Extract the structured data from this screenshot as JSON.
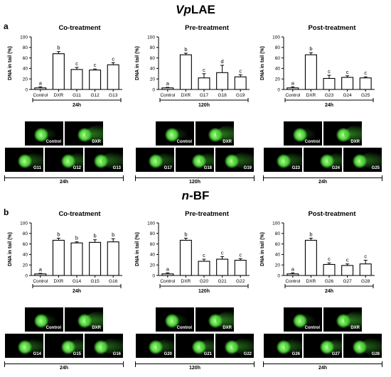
{
  "sections": [
    {
      "letter": "a",
      "title_pre": "Vp",
      "title_post": "LAE",
      "charts": [
        {
          "title": "Co-treatment",
          "time": "24h"
        },
        {
          "title": "Pre-treatment",
          "time": "120h"
        },
        {
          "title": "Post-treatment",
          "time": "24h"
        }
      ],
      "comets": [
        {
          "top": [
            "Control",
            "DXR"
          ],
          "bottom": [
            "G11",
            "G12",
            "G13"
          ],
          "time": "24h"
        },
        {
          "top": [
            "Control",
            "DXR"
          ],
          "bottom": [
            "G17",
            "G18",
            "G19"
          ],
          "time": "120h"
        },
        {
          "top": [
            "Control",
            "DXR"
          ],
          "bottom": [
            "G23",
            "G24",
            "G25"
          ],
          "time": "24h"
        }
      ]
    },
    {
      "letter": "b",
      "title_pre": "n",
      "title_post": "-BF",
      "charts": [
        {
          "title": "Co-treatment",
          "time": "24h"
        },
        {
          "title": "Pre-treatment",
          "time": "120h"
        },
        {
          "title": "Post-treatment",
          "time": "24h"
        }
      ],
      "comets": [
        {
          "top": [
            "Control",
            "DXR"
          ],
          "bottom": [
            "G14",
            "G15",
            "G16"
          ],
          "time": "24h"
        },
        {
          "top": [
            "Control",
            "DXR"
          ],
          "bottom": [
            "G20",
            "G21",
            "G22"
          ],
          "time": "120h"
        },
        {
          "top": [
            "Control",
            "DXR"
          ],
          "bottom": [
            "G26",
            "G27",
            "G28"
          ],
          "time": "24h"
        }
      ]
    }
  ],
  "chart_data": [
    {
      "type": "bar",
      "title": "Co-treatment",
      "ylabel": "DNA in tail (%)",
      "xlabel": "24h",
      "ylim": [
        0,
        100
      ],
      "yticks": [
        0,
        20,
        40,
        60,
        80,
        100
      ],
      "categories": [
        "Control",
        "DXR",
        "G11",
        "G12",
        "G13"
      ],
      "values": [
        3,
        68,
        38,
        37,
        47
      ],
      "errors": [
        2,
        4,
        4,
        2,
        4
      ],
      "letters": [
        "a",
        "b",
        "c",
        "c",
        "c"
      ]
    },
    {
      "type": "bar",
      "title": "Pre-treatment",
      "ylabel": "DNA in tail (%)",
      "xlabel": "120h",
      "ylim": [
        0,
        100
      ],
      "yticks": [
        0,
        20,
        40,
        60,
        80,
        100
      ],
      "categories": [
        "Control",
        "DXR",
        "G17",
        "G18",
        "G19"
      ],
      "values": [
        3,
        66,
        22,
        32,
        24
      ],
      "errors": [
        1,
        3,
        8,
        14,
        4
      ],
      "letters": [
        "a",
        "b",
        "c",
        "d",
        "c"
      ]
    },
    {
      "type": "bar",
      "title": "Post-treatment",
      "ylabel": "DNA in tail (%)",
      "xlabel": "24h",
      "ylim": [
        0,
        100
      ],
      "yticks": [
        0,
        20,
        40,
        60,
        80,
        100
      ],
      "categories": [
        "Control",
        "DXR",
        "G23",
        "G24",
        "G25"
      ],
      "values": [
        3,
        66,
        21,
        23,
        22
      ],
      "errors": [
        2,
        4,
        6,
        3,
        2
      ],
      "letters": [
        "a",
        "b",
        "c",
        "c",
        "c"
      ]
    },
    {
      "type": "bar",
      "title": "Co-treatment",
      "ylabel": "DNA in tail (%)",
      "xlabel": "24h",
      "ylim": [
        0,
        100
      ],
      "yticks": [
        0,
        20,
        40,
        60,
        80,
        100
      ],
      "categories": [
        "Control",
        "DXR",
        "G14",
        "G15",
        "G16"
      ],
      "values": [
        3,
        67,
        62,
        63,
        64
      ],
      "errors": [
        1,
        4,
        2,
        5,
        6
      ],
      "letters": [
        "a",
        "b",
        "b",
        "b",
        "b"
      ]
    },
    {
      "type": "bar",
      "title": "Pre-treatment",
      "ylabel": "DNA in tail (%)",
      "xlabel": "120h",
      "ylim": [
        0,
        100
      ],
      "yticks": [
        0,
        20,
        40,
        60,
        80,
        100
      ],
      "categories": [
        "Control",
        "DXR",
        "G20",
        "G21",
        "G22"
      ],
      "values": [
        3,
        67,
        27,
        31,
        29
      ],
      "errors": [
        2,
        4,
        4,
        5,
        3
      ],
      "letters": [
        "a",
        "b",
        "c",
        "c",
        "c"
      ]
    },
    {
      "type": "bar",
      "title": "Post-treatment",
      "ylabel": "DNA in tail (%)",
      "xlabel": "24h",
      "ylim": [
        0,
        100
      ],
      "yticks": [
        0,
        20,
        40,
        60,
        80,
        100
      ],
      "categories": [
        "Control",
        "DXR",
        "G26",
        "G27",
        "G28"
      ],
      "values": [
        3,
        67,
        21,
        19,
        22
      ],
      "errors": [
        2,
        4,
        3,
        3,
        7
      ],
      "letters": [
        "a",
        "b",
        "c",
        "c",
        "c"
      ]
    }
  ]
}
